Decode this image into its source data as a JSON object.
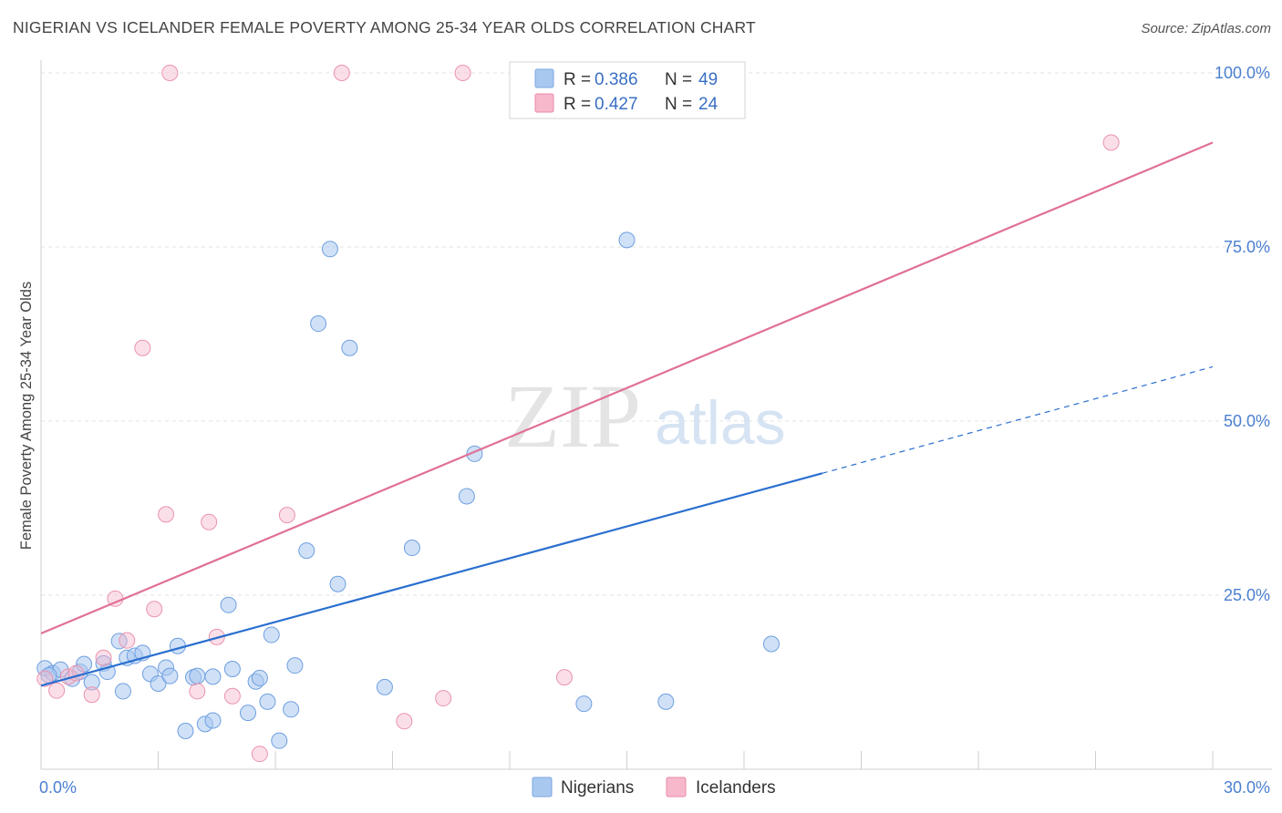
{
  "header": {
    "title": "NIGERIAN VS ICELANDER FEMALE POVERTY AMONG 25-34 YEAR OLDS CORRELATION CHART",
    "source": "Source: ZipAtlas.com"
  },
  "watermark": {
    "zip": "ZIP",
    "atlas": "atlas"
  },
  "legend": {
    "rows": [
      {
        "r_label": "R = ",
        "r_value": "0.386",
        "n_label": "N = ",
        "n_value": "49",
        "color": "#a9c8f0"
      },
      {
        "r_label": "R = ",
        "r_value": "0.427",
        "n_label": "N = ",
        "n_value": "24",
        "color": "#f7b8cb"
      }
    ]
  },
  "bottom_legend": {
    "items": [
      "Nigerians",
      "Icelanders"
    ]
  },
  "chart_data": {
    "type": "scatter",
    "title": "NIGERIAN VS ICELANDER FEMALE POVERTY AMONG 25-34 YEAR OLDS CORRELATION CHART",
    "xlabel": "",
    "ylabel": "Female Poverty Among 25-34 Year Olds",
    "xlim": [
      0,
      30
    ],
    "ylim": [
      0,
      100
    ],
    "x_tick_labels": [
      "0.0%",
      "30.0%"
    ],
    "y_tick_labels": [
      "25.0%",
      "50.0%",
      "75.0%",
      "100.0%"
    ],
    "y_ticks": [
      25,
      50,
      75,
      100
    ],
    "grid": true,
    "legend_position": "top-center",
    "colors": {
      "nigerians": "#2a6fcf",
      "icelanders": "#e07098",
      "nigerians_fill": "#a9c8f0",
      "icelanders_fill": "#f7b8cb"
    },
    "series": [
      {
        "name": "Nigerians",
        "points": [
          [
            0.1,
            14.5
          ],
          [
            0.3,
            13.8
          ],
          [
            0.5,
            14.3
          ],
          [
            0.8,
            13.0
          ],
          [
            1.0,
            14.0
          ],
          [
            1.1,
            15.1
          ],
          [
            1.3,
            12.5
          ],
          [
            1.6,
            15.2
          ],
          [
            1.7,
            14.0
          ],
          [
            2.2,
            16.0
          ],
          [
            2.0,
            18.4
          ],
          [
            2.1,
            11.2
          ],
          [
            2.4,
            16.3
          ],
          [
            2.6,
            16.7
          ],
          [
            2.8,
            13.7
          ],
          [
            3.0,
            12.3
          ],
          [
            3.2,
            14.6
          ],
          [
            3.3,
            13.4
          ],
          [
            3.5,
            17.7
          ],
          [
            3.7,
            5.5
          ],
          [
            3.9,
            13.2
          ],
          [
            4.0,
            13.4
          ],
          [
            4.2,
            6.5
          ],
          [
            4.4,
            7.0
          ],
          [
            4.4,
            13.3
          ],
          [
            4.8,
            23.6
          ],
          [
            4.9,
            14.4
          ],
          [
            5.3,
            8.1
          ],
          [
            5.5,
            12.6
          ],
          [
            5.6,
            13.1
          ],
          [
            5.8,
            9.7
          ],
          [
            5.9,
            19.3
          ],
          [
            6.1,
            4.1
          ],
          [
            6.4,
            8.6
          ],
          [
            6.5,
            14.9
          ],
          [
            6.8,
            31.4
          ],
          [
            7.1,
            64.0
          ],
          [
            7.4,
            74.7
          ],
          [
            7.6,
            26.6
          ],
          [
            7.9,
            60.5
          ],
          [
            8.8,
            11.8
          ],
          [
            9.5,
            31.8
          ],
          [
            10.9,
            39.2
          ],
          [
            11.1,
            45.3
          ],
          [
            13.9,
            9.4
          ],
          [
            15.0,
            76.0
          ],
          [
            16.0,
            9.7
          ],
          [
            18.7,
            18.0
          ],
          [
            0.2,
            13.5
          ]
        ],
        "trend": {
          "x": [
            0,
            20
          ],
          "y": [
            12.0,
            42.5
          ],
          "dashed_extension": {
            "x": [
              20,
              30
            ],
            "y": [
              42.5,
              57.8
            ]
          }
        }
      },
      {
        "name": "Icelanders",
        "points": [
          [
            0.1,
            13.0
          ],
          [
            0.4,
            11.3
          ],
          [
            0.7,
            13.3
          ],
          [
            0.9,
            13.8
          ],
          [
            1.3,
            10.7
          ],
          [
            1.6,
            16.0
          ],
          [
            1.9,
            24.5
          ],
          [
            2.2,
            18.5
          ],
          [
            2.6,
            60.5
          ],
          [
            2.9,
            23.0
          ],
          [
            3.2,
            36.6
          ],
          [
            3.3,
            100.0
          ],
          [
            4.0,
            11.2
          ],
          [
            4.3,
            35.5
          ],
          [
            4.5,
            19.0
          ],
          [
            4.9,
            10.5
          ],
          [
            5.6,
            2.2
          ],
          [
            6.3,
            36.5
          ],
          [
            7.7,
            100.0
          ],
          [
            9.3,
            6.9
          ],
          [
            10.3,
            10.2
          ],
          [
            10.8,
            100.0
          ],
          [
            13.4,
            13.2
          ],
          [
            27.4,
            90.0
          ]
        ],
        "trend": {
          "x": [
            0,
            30
          ],
          "y": [
            19.5,
            90.0
          ]
        }
      }
    ]
  }
}
